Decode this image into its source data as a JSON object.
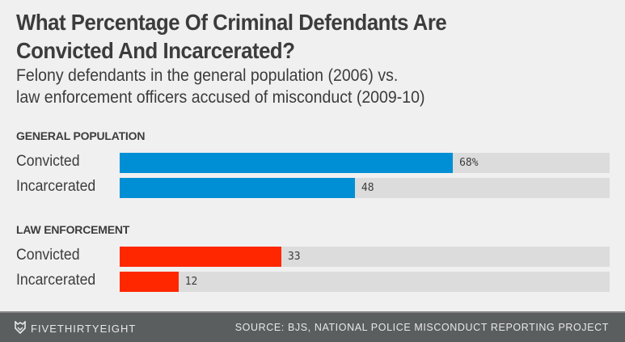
{
  "chart_data": {
    "type": "bar",
    "orientation": "horizontal",
    "title": "What Percentage Of Criminal Defendants Are Convicted And Incarcerated?",
    "subtitle_lines": [
      "Felony defendants in the general population (2006) vs.",
      "law enforcement officers accused of misconduct (2009-10)"
    ],
    "xlim": [
      0,
      100
    ],
    "unit": "%",
    "grid": false,
    "groups": [
      {
        "name": "GENERAL POPULATION",
        "color": "#008fd5",
        "categories": [
          "Convicted",
          "Incarcerated"
        ],
        "values": [
          68,
          48
        ],
        "labels": [
          "68%",
          "48"
        ]
      },
      {
        "name": "LAW ENFORCEMENT",
        "color": "#ff2700",
        "categories": [
          "Convicted",
          "Incarcerated"
        ],
        "values": [
          33,
          12
        ],
        "labels": [
          "33",
          "12"
        ]
      }
    ]
  },
  "footer": {
    "brand": "FIVETHIRTYEIGHT",
    "brand_icon": "fox-icon",
    "source": "SOURCE: BJS, NATIONAL POLICE MISCONDUCT REPORTING PROJECT"
  },
  "colors": {
    "background": "#f0f0f0",
    "track": "#dcdcdc",
    "footer": "#5b5e5f"
  }
}
